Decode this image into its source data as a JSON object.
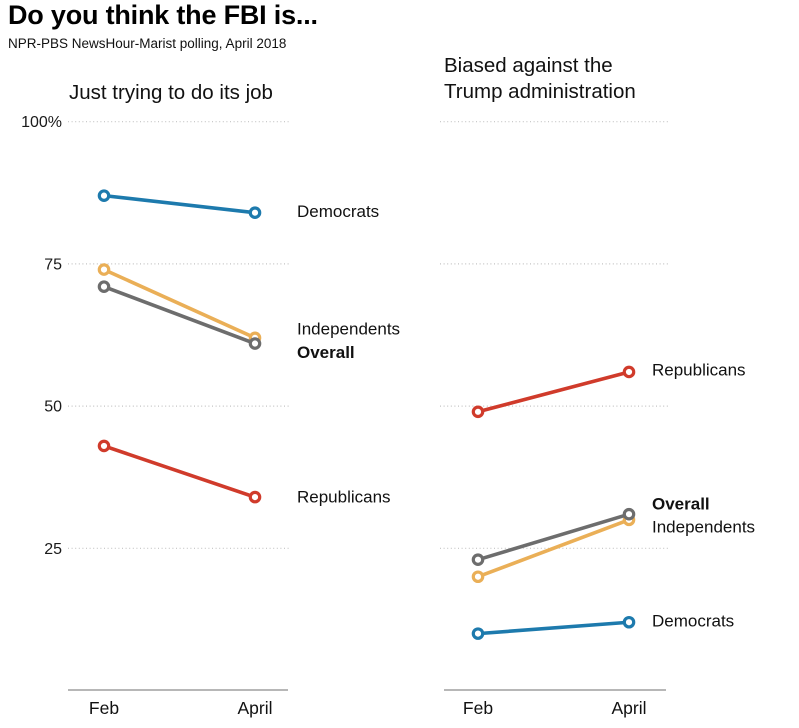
{
  "header": {
    "title": "Do you think the FBI is...",
    "subtitle": "NPR-PBS NewsHour-Marist polling, April 2018"
  },
  "colors": {
    "democrats": "#1d7aad",
    "independents": "#eaaf57",
    "overall": "#6d6d6d",
    "republicans": "#d03b2b",
    "gridline": "#c3c3c3",
    "axis": "#8c8c8c",
    "text": "#111111"
  },
  "chart_data": [
    {
      "type": "line",
      "title": "Just trying to do its job",
      "x": [
        "Feb",
        "April"
      ],
      "ylim": [
        0,
        100
      ],
      "yticks": [
        100,
        75,
        50,
        25
      ],
      "ytick_labels": [
        "100%",
        "75",
        "50",
        "25"
      ],
      "grid": "dotted-horizontal",
      "legend_position": "labels-right-of-lines",
      "series": [
        {
          "name": "Democrats",
          "values": [
            87,
            84
          ],
          "color": "#1d7aad",
          "bold": false,
          "label_dy": -1
        },
        {
          "name": "Independents",
          "values": [
            74,
            62
          ],
          "color": "#eaaf57",
          "bold": false,
          "label_dy": -9
        },
        {
          "name": "Overall",
          "values": [
            71,
            61
          ],
          "color": "#6d6d6d",
          "bold": true,
          "label_dy": 9
        },
        {
          "name": "Republicans",
          "values": [
            43,
            34
          ],
          "color": "#d03b2b",
          "bold": false,
          "label_dy": 0
        }
      ]
    },
    {
      "type": "line",
      "title": "Biased against the\nTrump administration",
      "x": [
        "Feb",
        "April"
      ],
      "ylim": [
        0,
        100
      ],
      "yticks": [
        100,
        75,
        50,
        25
      ],
      "ytick_labels": [
        "100%",
        "75",
        "50",
        "25"
      ],
      "grid": "dotted-horizontal",
      "legend_position": "labels-right-of-lines",
      "series": [
        {
          "name": "Republicans",
          "values": [
            49,
            56
          ],
          "color": "#d03b2b",
          "bold": false,
          "label_dy": -2
        },
        {
          "name": "Independents",
          "values": [
            20,
            30
          ],
          "color": "#eaaf57",
          "bold": false,
          "label_dy": 7
        },
        {
          "name": "Overall",
          "values": [
            23,
            31
          ],
          "color": "#6d6d6d",
          "bold": true,
          "label_dy": -10
        },
        {
          "name": "Democrats",
          "values": [
            10,
            12
          ],
          "color": "#1d7aad",
          "bold": false,
          "label_dy": -1
        }
      ]
    }
  ]
}
